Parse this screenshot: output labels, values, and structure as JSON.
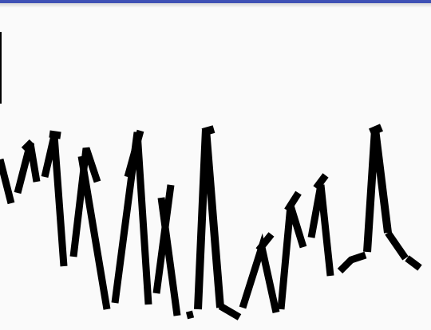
{
  "app": {
    "accent_color": "#3f51b5",
    "background_color": "#fafafa",
    "stroke_color": "#000000"
  },
  "canvas": {
    "content": "freehand-stroke-drawing"
  }
}
